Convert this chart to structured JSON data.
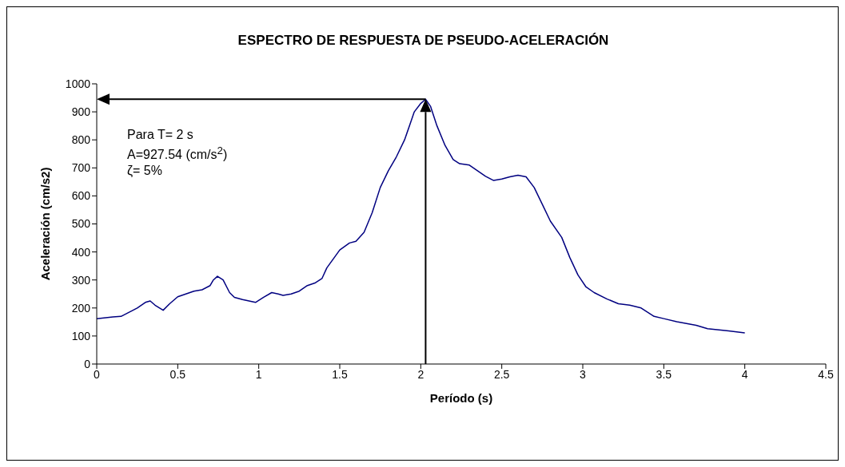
{
  "chart_data": {
    "type": "line",
    "title": "ESPECTRO DE RESPUESTA DE PSEUDO-ACELERACIÓN",
    "xlabel": "Período (s)",
    "ylabel": "Aceleración (cm/s2)",
    "annotations": [
      "Para T= 2 s",
      "A=927.54 (cm/s$^{2}$)",
      "ζ= 5%"
    ],
    "series": [
      {
        "color": "#000080",
        "x": [
          0,
          0.1,
          0.15,
          0.2,
          0.25,
          0.3,
          0.33,
          0.36,
          0.41,
          0.45,
          0.5,
          0.55,
          0.6,
          0.65,
          0.7,
          0.72,
          0.745,
          0.78,
          0.82,
          0.85,
          0.9,
          0.98,
          1.03,
          1.08,
          1.12,
          1.15,
          1.2,
          1.25,
          1.3,
          1.35,
          1.39,
          1.42,
          1.5,
          1.56,
          1.6,
          1.65,
          1.7,
          1.75,
          1.8,
          1.85,
          1.9,
          1.93,
          1.96,
          2.0,
          2.03,
          2.06,
          2.1,
          2.15,
          2.2,
          2.24,
          2.3,
          2.35,
          2.4,
          2.45,
          2.5,
          2.55,
          2.6,
          2.65,
          2.7,
          2.75,
          2.8,
          2.87,
          2.92,
          2.97,
          3.02,
          3.07,
          3.15,
          3.22,
          3.29,
          3.36,
          3.44,
          3.5,
          3.58,
          3.7,
          3.77,
          3.9,
          4.0
        ],
        "values": [
          162,
          168,
          170,
          185,
          200,
          220,
          225,
          210,
          192,
          215,
          240,
          250,
          260,
          265,
          280,
          300,
          313,
          300,
          255,
          238,
          230,
          220,
          238,
          255,
          250,
          245,
          250,
          260,
          280,
          290,
          305,
          343,
          407,
          432,
          438,
          470,
          540,
          630,
          690,
          740,
          800,
          850,
          900,
          930,
          945,
          920,
          850,
          780,
          730,
          715,
          710,
          690,
          670,
          655,
          660,
          668,
          674,
          668,
          630,
          570,
          510,
          452,
          380,
          318,
          275,
          255,
          232,
          215,
          210,
          200,
          170,
          162,
          151,
          138,
          126,
          118,
          111
        ]
      }
    ],
    "xlim": [
      0,
      4.5
    ],
    "xticks": [
      0,
      0.5,
      1,
      1.5,
      2,
      2.5,
      3,
      3.5,
      4,
      4.5
    ],
    "ylim": [
      0,
      1000
    ],
    "yticks": [
      0,
      100,
      200,
      300,
      400,
      500,
      600,
      700,
      800,
      900,
      1000
    ],
    "ref_lines": [
      {
        "axis": "x",
        "value": 2.03,
        "color": "#000000"
      },
      {
        "axis": "y",
        "value": 945,
        "color": "#000000"
      }
    ],
    "grid": false,
    "legend": false,
    "marker": "none",
    "line_style": "solid"
  }
}
